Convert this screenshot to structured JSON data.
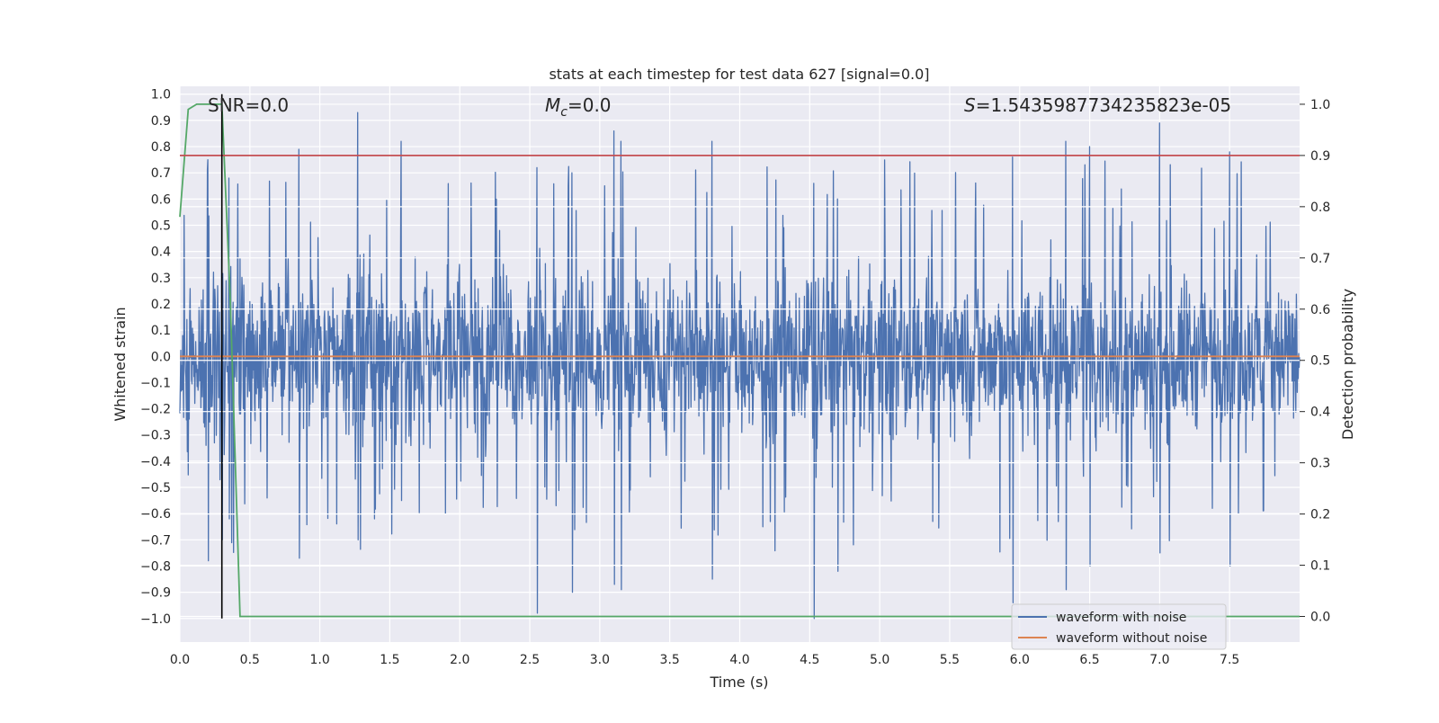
{
  "chart_data": {
    "type": "line",
    "title": "stats at each timestep for test data 627 [signal=0.0]",
    "xlabel": "Time (s)",
    "ylabel_left": "Whitened strain",
    "ylabel_right": "Detection probability",
    "xlim": [
      0.0,
      8.0
    ],
    "ylim_left": [
      -1.09,
      1.03
    ],
    "ylim_right": [
      -0.05,
      1.035
    ],
    "x_ticks": [
      "0.0",
      "0.5",
      "1.0",
      "1.5",
      "2.0",
      "2.5",
      "3.0",
      "3.5",
      "4.0",
      "4.5",
      "5.0",
      "5.5",
      "6.0",
      "6.5",
      "7.0",
      "7.5"
    ],
    "y_left_ticks": [
      "1.0",
      "0.9",
      "0.8",
      "0.7",
      "0.6",
      "0.5",
      "0.4",
      "0.3",
      "0.2",
      "0.1",
      "0.0",
      "−0.1",
      "−0.2",
      "−0.3",
      "−0.4",
      "−0.5",
      "−0.6",
      "−0.7",
      "−0.8",
      "−0.9",
      "−1.0"
    ],
    "y_right_ticks": [
      "1.0",
      "0.9",
      "0.8",
      "0.7",
      "0.6",
      "0.5",
      "0.4",
      "0.3",
      "0.2",
      "0.1",
      "0.0"
    ],
    "annotations": {
      "snr": "SNR=0.0",
      "mc_symbol": "M",
      "mc_sub": "c",
      "mc_value": "=0.0",
      "s_symbol": "S",
      "s_value": "=1.5435987734235823e-05"
    },
    "legend": {
      "position": "lower-right",
      "items": [
        "waveform with noise",
        "waveform without noise"
      ]
    },
    "series": [
      {
        "name": "waveform with noise",
        "axis": "left",
        "color": "#4c72b0",
        "description_peaks": {
          "x": [
            0.2,
            0.3,
            0.35,
            0.85,
            1.27,
            1.58,
            2.55,
            2.8,
            3.1,
            3.15,
            3.8,
            4.53,
            4.7,
            5.95,
            6.33,
            6.5,
            7.0,
            7.5
          ],
          "y_max": [
            0.75,
            0.72,
            0.68,
            0.79,
            0.93,
            0.82,
            0.72,
            0.7,
            0.86,
            0.82,
            0.82,
            0.66,
            0.6,
            0.76,
            0.82,
            0.8,
            0.89,
            0.78
          ],
          "y_min": [
            -0.78,
            -0.7,
            -0.62,
            -0.77,
            -0.7,
            -0.55,
            -0.98,
            -0.9,
            -0.87,
            -0.89,
            -0.85,
            -1.0,
            -0.82,
            -0.94,
            -0.89,
            -0.8,
            -0.75,
            -0.8
          ]
        },
        "envelope_typical": 0.4
      },
      {
        "name": "waveform without noise",
        "axis": "left",
        "color": "#dd8452",
        "x": [
          0.0,
          8.0
        ],
        "y": [
          0.0,
          0.0
        ]
      },
      {
        "axis": "right",
        "color": "#55a868",
        "x": [
          0.0,
          0.06,
          0.12,
          0.18,
          0.24,
          0.3,
          0.36,
          0.43,
          8.0
        ],
        "y": [
          0.78,
          0.99,
          1.0,
          1.0,
          1.0,
          1.0,
          0.62,
          0.0,
          0.0
        ]
      },
      {
        "axis": "right",
        "color": "#c44e52",
        "x": [
          0.0,
          8.0
        ],
        "y": [
          0.9,
          0.9
        ]
      },
      {
        "axis": "left",
        "color": "#000000",
        "x": [
          0.3,
          0.3
        ],
        "y": [
          -1.0,
          1.0
        ]
      }
    ]
  }
}
